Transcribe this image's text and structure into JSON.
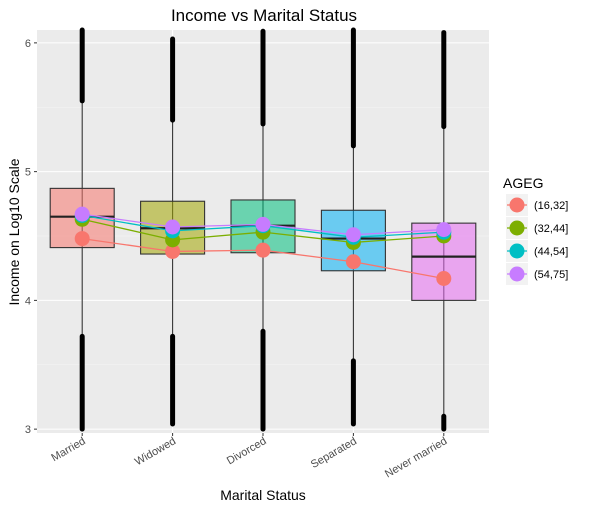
{
  "chart_data": {
    "type": "box",
    "title": "Income vs Marital Status",
    "xlabel": "Marital Status",
    "ylabel": "Income on Log10 Scale",
    "ylim": [
      2.97,
      6.1
    ],
    "yticks": [
      3,
      4,
      5,
      6
    ],
    "grid": true,
    "legend_position": "right",
    "categories": [
      "Married",
      "Widowed",
      "Divorced",
      "Separated",
      "Never married"
    ],
    "box_colors": [
      "#F8766D",
      "#A3A500",
      "#00BF7D",
      "#00B0F6",
      "#E76BF3"
    ],
    "boxes": [
      {
        "category": "Married",
        "min": 3.0,
        "q1": 4.41,
        "median": 4.65,
        "q3": 4.87,
        "max": 6.1,
        "outlier_low": [
          3.0,
          3.72
        ],
        "outlier_high": [
          5.55,
          6.1
        ]
      },
      {
        "category": "Widowed",
        "min": 3.04,
        "q1": 4.36,
        "median": 4.56,
        "q3": 4.77,
        "max": 6.03,
        "outlier_low": [
          3.04,
          3.72
        ],
        "outlier_high": [
          5.4,
          6.03
        ]
      },
      {
        "category": "Divorced",
        "min": 3.0,
        "q1": 4.37,
        "median": 4.58,
        "q3": 4.78,
        "max": 6.09,
        "outlier_low": [
          3.0,
          3.76
        ],
        "outlier_high": [
          5.37,
          6.09
        ]
      },
      {
        "category": "Separated",
        "min": 3.04,
        "q1": 4.23,
        "median": 4.48,
        "q3": 4.7,
        "max": 6.1,
        "outlier_low": [
          3.04,
          3.53
        ],
        "outlier_high": [
          5.2,
          6.1
        ]
      },
      {
        "category": "Never married",
        "min": 3.0,
        "q1": 4.0,
        "median": 4.34,
        "q3": 4.6,
        "max": 6.08,
        "outlier_low": [
          3.0,
          3.1
        ],
        "outlier_high": [
          5.35,
          6.08
        ]
      }
    ],
    "legend_title": "AGEG",
    "series": [
      {
        "name": "(16,32]",
        "color": "#F8766D",
        "values": [
          4.48,
          4.38,
          4.39,
          4.3,
          4.17
        ]
      },
      {
        "name": "(32,44]",
        "color": "#7CAE00",
        "values": [
          4.63,
          4.47,
          4.53,
          4.45,
          4.5
        ]
      },
      {
        "name": "(44,54]",
        "color": "#00BFC4",
        "values": [
          4.66,
          4.54,
          4.58,
          4.49,
          4.53
        ]
      },
      {
        "name": "(54,75]",
        "color": "#C77CFF",
        "values": [
          4.67,
          4.57,
          4.59,
          4.51,
          4.55
        ]
      }
    ]
  }
}
